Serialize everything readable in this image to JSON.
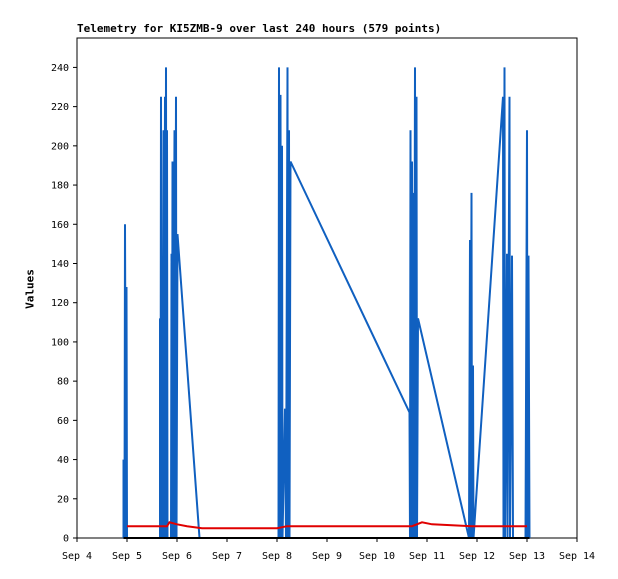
{
  "chart_data": {
    "type": "line",
    "title": "Telemetry for KI5ZMB-9 over last 240 hours (579 points)",
    "xlabel": "",
    "ylabel": "Values",
    "x_ticks": [
      "Sep 4",
      "Sep 5",
      "Sep 6",
      "Sep 7",
      "Sep 8",
      "Sep 9",
      "Sep 10",
      "Sep 11",
      "Sep 12",
      "Sep 13",
      "Sep 14"
    ],
    "y_ticks": [
      0,
      20,
      40,
      60,
      80,
      100,
      120,
      140,
      160,
      180,
      200,
      220,
      240
    ],
    "xlim_days": [
      4,
      14
    ],
    "ylim": [
      0,
      255
    ],
    "grid": false,
    "series": [
      {
        "color": "#1060c0",
        "points": [
          [
            4.93,
            0
          ],
          [
            4.93,
            40
          ],
          [
            4.95,
            0
          ],
          [
            4.96,
            160
          ],
          [
            4.98,
            0
          ],
          [
            4.99,
            128
          ],
          [
            5.0,
            0
          ],
          [
            5.66,
            0
          ],
          [
            5.66,
            112
          ],
          [
            5.67,
            0
          ],
          [
            5.68,
            225
          ],
          [
            5.69,
            0
          ],
          [
            5.7,
            112
          ],
          [
            5.71,
            0
          ],
          [
            5.73,
            208
          ],
          [
            5.74,
            0
          ],
          [
            5.76,
            225
          ],
          [
            5.77,
            0
          ],
          [
            5.78,
            240
          ],
          [
            5.79,
            0
          ],
          [
            5.8,
            208
          ],
          [
            5.81,
            0
          ],
          [
            5.88,
            0
          ],
          [
            5.89,
            145
          ],
          [
            5.9,
            0
          ],
          [
            5.91,
            192
          ],
          [
            5.92,
            0
          ],
          [
            5.95,
            208
          ],
          [
            5.96,
            0
          ],
          [
            5.98,
            225
          ],
          [
            5.99,
            0
          ],
          [
            6.01,
            155
          ],
          [
            6.45,
            0
          ],
          [
            8.03,
            0
          ],
          [
            8.04,
            240
          ],
          [
            8.05,
            0
          ],
          [
            8.07,
            226
          ],
          [
            8.08,
            0
          ],
          [
            8.1,
            200
          ],
          [
            8.11,
            0
          ],
          [
            8.16,
            66
          ],
          [
            8.18,
            0
          ],
          [
            8.21,
            240
          ],
          [
            8.22,
            0
          ],
          [
            8.24,
            208
          ],
          [
            8.25,
            0
          ],
          [
            8.27,
            192
          ],
          [
            10.65,
            64
          ],
          [
            10.66,
            0
          ],
          [
            10.67,
            208
          ],
          [
            10.68,
            0
          ],
          [
            10.7,
            192
          ],
          [
            10.71,
            0
          ],
          [
            10.73,
            176
          ],
          [
            10.74,
            0
          ],
          [
            10.76,
            240
          ],
          [
            10.77,
            0
          ],
          [
            10.79,
            225
          ],
          [
            10.8,
            0
          ],
          [
            10.82,
            112
          ],
          [
            11.84,
            0
          ],
          [
            11.86,
            152
          ],
          [
            11.87,
            0
          ],
          [
            11.89,
            176
          ],
          [
            11.9,
            0
          ],
          [
            11.92,
            88
          ],
          [
            11.93,
            0
          ],
          [
            12.52,
            225
          ],
          [
            12.53,
            0
          ],
          [
            12.55,
            240
          ],
          [
            12.56,
            0
          ],
          [
            12.6,
            145
          ],
          [
            12.61,
            0
          ],
          [
            12.65,
            225
          ],
          [
            12.66,
            0
          ],
          [
            12.7,
            144
          ],
          [
            12.72,
            0
          ],
          [
            12.97,
            0
          ],
          [
            13.0,
            208
          ],
          [
            13.01,
            0
          ],
          [
            13.03,
            144
          ],
          [
            13.05,
            0
          ]
        ]
      },
      {
        "color": "#e00000",
        "points": [
          [
            5.0,
            6
          ],
          [
            5.8,
            6
          ],
          [
            5.85,
            8
          ],
          [
            6.0,
            7
          ],
          [
            6.2,
            6
          ],
          [
            6.5,
            5
          ],
          [
            8.0,
            5
          ],
          [
            8.2,
            6
          ],
          [
            10.7,
            6
          ],
          [
            10.9,
            8
          ],
          [
            11.1,
            7
          ],
          [
            11.9,
            6
          ],
          [
            12.4,
            6
          ],
          [
            13.0,
            6
          ]
        ]
      },
      {
        "color": "#000000",
        "points": [
          [
            4.93,
            0
          ],
          [
            13.05,
            0
          ]
        ]
      }
    ]
  }
}
